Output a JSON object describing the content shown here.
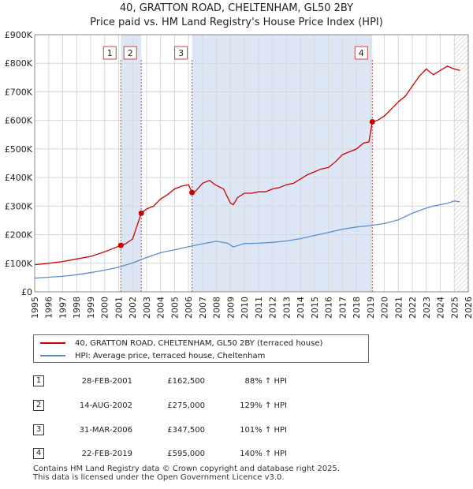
{
  "chart_data": {
    "type": "line",
    "title": "40, GRATTON ROAD, CHELTENHAM, GL50 2BY",
    "subtitle": "Price paid vs. HM Land Registry's House Price Index (HPI)",
    "xlim": [
      1995,
      2026
    ],
    "ylim": [
      0,
      900000
    ],
    "x_ticks": [
      1995,
      1996,
      1997,
      1998,
      1999,
      2000,
      2001,
      2002,
      2003,
      2004,
      2005,
      2006,
      2007,
      2008,
      2009,
      2010,
      2011,
      2012,
      2013,
      2014,
      2015,
      2016,
      2017,
      2018,
      2019,
      2020,
      2021,
      2022,
      2023,
      2024,
      2025,
      2026
    ],
    "y_ticks": [
      {
        "value": 0,
        "label": "£0"
      },
      {
        "value": 100000,
        "label": "£100K"
      },
      {
        "value": 200000,
        "label": "£200K"
      },
      {
        "value": 300000,
        "label": "£300K"
      },
      {
        "value": 400000,
        "label": "£400K"
      },
      {
        "value": 500000,
        "label": "£500K"
      },
      {
        "value": 600000,
        "label": "£600K"
      },
      {
        "value": 700000,
        "label": "£700K"
      },
      {
        "value": 800000,
        "label": "£800K"
      },
      {
        "value": 900000,
        "label": "£900K"
      }
    ],
    "grid": true,
    "shaded_spans": [
      [
        2001.16,
        2002.62
      ],
      [
        2006.25,
        2019.14
      ]
    ],
    "future_hatch_from": 2025.0,
    "series": [
      {
        "name": "40, GRATTON ROAD, CHELTENHAM, GL50 2BY (terraced house)",
        "color": "#cc0000",
        "x": [
          1995.0,
          1996.0,
          1997.0,
          1998.0,
          1999.0,
          2000.0,
          2001.16,
          2001.5,
          2002.0,
          2002.62,
          2003.0,
          2003.5,
          2004.0,
          2004.5,
          2005.0,
          2005.5,
          2006.0,
          2006.25,
          2006.5,
          2007.0,
          2007.5,
          2007.9,
          2008.5,
          2009.0,
          2009.2,
          2009.5,
          2010.0,
          2010.5,
          2011.0,
          2011.5,
          2012.0,
          2012.5,
          2013.0,
          2013.5,
          2014.0,
          2014.5,
          2015.0,
          2015.5,
          2016.0,
          2016.5,
          2017.0,
          2017.5,
          2018.0,
          2018.5,
          2018.9,
          2019.14,
          2019.5,
          2020.0,
          2020.5,
          2021.0,
          2021.5,
          2022.0,
          2022.5,
          2023.0,
          2023.5,
          2024.0,
          2024.5,
          2025.0,
          2025.4
        ],
        "y": [
          95000,
          100000,
          106000,
          115000,
          124000,
          140000,
          162500,
          168000,
          185000,
          275000,
          290000,
          300000,
          325000,
          340000,
          360000,
          370000,
          375000,
          347500,
          352000,
          380000,
          390000,
          375000,
          360000,
          310000,
          305000,
          330000,
          345000,
          345000,
          350000,
          350000,
          360000,
          365000,
          375000,
          380000,
          395000,
          410000,
          420000,
          430000,
          435000,
          455000,
          480000,
          490000,
          500000,
          520000,
          525000,
          595000,
          600000,
          615000,
          640000,
          665000,
          685000,
          720000,
          755000,
          780000,
          760000,
          775000,
          790000,
          780000,
          775000
        ]
      },
      {
        "name": "HPI: Average price, terraced house, Cheltenham",
        "color": "#5b8fcb",
        "x": [
          1995.0,
          1996.0,
          1997.0,
          1998.0,
          1999.0,
          2000.0,
          2001.0,
          2002.0,
          2003.0,
          2004.0,
          2005.0,
          2006.0,
          2007.0,
          2008.0,
          2008.8,
          2009.2,
          2010.0,
          2011.0,
          2012.0,
          2013.0,
          2014.0,
          2015.0,
          2016.0,
          2017.0,
          2018.0,
          2019.0,
          2020.0,
          2021.0,
          2022.0,
          2022.8,
          2023.5,
          2024.0,
          2024.5,
          2025.0,
          2025.4
        ],
        "y": [
          48000,
          51000,
          54000,
          60000,
          67000,
          76000,
          86000,
          101000,
          120000,
          137000,
          147000,
          158000,
          168000,
          177000,
          170000,
          157000,
          169000,
          170000,
          173000,
          178000,
          186000,
          197000,
          208000,
          219000,
          227000,
          232000,
          239000,
          252000,
          275000,
          290000,
          300000,
          305000,
          310000,
          318000,
          315000
        ]
      }
    ],
    "markers": [
      {
        "label": "1",
        "x": 2001.16,
        "y": 162500
      },
      {
        "label": "2",
        "x": 2002.62,
        "y": 275000
      },
      {
        "label": "3",
        "x": 2006.25,
        "y": 347500
      },
      {
        "label": "4",
        "x": 2019.14,
        "y": 595000
      }
    ]
  },
  "legend": {
    "property": "40, GRATTON ROAD, CHELTENHAM, GL50 2BY (terraced house)",
    "hpi": "HPI: Average price, terraced house, Cheltenham"
  },
  "transactions": [
    {
      "num": "1",
      "date": "28-FEB-2001",
      "price": "£162,500",
      "hpi": "88% ↑ HPI"
    },
    {
      "num": "2",
      "date": "14-AUG-2002",
      "price": "£275,000",
      "hpi": "129% ↑ HPI"
    },
    {
      "num": "3",
      "date": "31-MAR-2006",
      "price": "£347,500",
      "hpi": "101% ↑ HPI"
    },
    {
      "num": "4",
      "date": "22-FEB-2019",
      "price": "£595,000",
      "hpi": "140% ↑ HPI"
    }
  ],
  "footer": {
    "line1": "Contains HM Land Registry data © Crown copyright and database right 2025.",
    "line2": "This data is licensed under the Open Government Licence v3.0."
  },
  "colors": {
    "property_line": "#cc0000",
    "hpi_line": "#5b8fcb",
    "shade": "#dde6f5",
    "grid": "#d8d8d8",
    "marker_line": "#cc4444"
  }
}
